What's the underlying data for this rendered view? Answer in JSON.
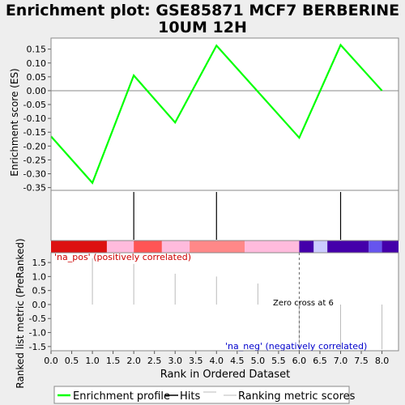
{
  "chart_data": {
    "title_line1": "Enrichment plot: GSE85871 MCF7 BERBERINE",
    "title_line2": "10UM 12H",
    "type": "line",
    "es_panel": {
      "ylabel": "Enrichment score (ES)",
      "ylim": [
        -0.36,
        0.19
      ],
      "yticks": [
        -0.35,
        -0.3,
        -0.25,
        -0.2,
        -0.15,
        -0.1,
        -0.05,
        0.0,
        0.05,
        0.1,
        0.15
      ],
      "ytick_labels": [
        "-0.35",
        "-0.30",
        "-0.25",
        "-0.20",
        "-0.15",
        "-0.10",
        "-0.05",
        "0.00",
        "0.05",
        "0.10",
        "0.15"
      ],
      "color": "#00ff00",
      "points": [
        {
          "x": 0,
          "y": -0.165
        },
        {
          "x": 1,
          "y": -0.333
        },
        {
          "x": 2,
          "y": 0.055
        },
        {
          "x": 3,
          "y": -0.115
        },
        {
          "x": 4,
          "y": 0.163
        },
        {
          "x": 6,
          "y": -0.17
        },
        {
          "x": 7,
          "y": 0.165
        },
        {
          "x": 8,
          "y": 0.0
        }
      ]
    },
    "hits": [
      2,
      4,
      7
    ],
    "color_bar": [
      {
        "from": 0.0,
        "to": 1.35,
        "color": "#dd1111"
      },
      {
        "from": 1.35,
        "to": 2.0,
        "color": "#ffbbdd"
      },
      {
        "from": 2.0,
        "to": 2.68,
        "color": "#ff5555"
      },
      {
        "from": 2.68,
        "to": 3.35,
        "color": "#ffbbdd"
      },
      {
        "from": 3.35,
        "to": 4.68,
        "color": "#ff8888"
      },
      {
        "from": 4.68,
        "to": 6.0,
        "color": "#ffbbdd"
      },
      {
        "from": 6.0,
        "to": 6.35,
        "color": "#4400aa"
      },
      {
        "from": 6.35,
        "to": 6.68,
        "color": "#ccccff"
      },
      {
        "from": 6.68,
        "to": 7.68,
        "color": "#4400aa"
      },
      {
        "from": 7.68,
        "to": 8.0,
        "color": "#6655ee"
      },
      {
        "from": 8.0,
        "to": 8.4,
        "color": "#4400aa"
      }
    ],
    "metric_panel": {
      "ylabel": "Ranked list metric (PreRanked)",
      "ylim": [
        -1.65,
        1.85
      ],
      "yticks": [
        -1.5,
        -1.0,
        -0.5,
        0.0,
        0.5,
        1.0,
        1.5
      ],
      "ytick_labels": [
        "-1.5",
        "-1.0",
        "-0.5",
        "0.0",
        "0.5",
        "1.0",
        "1.5"
      ],
      "bars": [
        {
          "x": 1,
          "y": 1.65
        },
        {
          "x": 2,
          "y": 1.45
        },
        {
          "x": 3,
          "y": 1.1
        },
        {
          "x": 4,
          "y": 1.0
        },
        {
          "x": 5,
          "y": 0.75
        },
        {
          "x": 6,
          "y": -1.6
        },
        {
          "x": 7,
          "y": -1.6
        },
        {
          "x": 8,
          "y": -1.6
        }
      ],
      "zero_cross_x": 6,
      "zero_cross_label": "Zero cross at 6",
      "pos_label": "'na_pos' (positively correlated)",
      "neg_label": "'na_neg' (negatively correlated)",
      "pos_color": "#cc0000",
      "neg_color": "#0000cc"
    },
    "x_axis": {
      "label": "Rank in Ordered Dataset",
      "xlim": [
        0,
        8.4
      ],
      "ticks": [
        0,
        0.5,
        1,
        1.5,
        2,
        2.5,
        3,
        3.5,
        4,
        4.5,
        5,
        5.5,
        6,
        6.5,
        7,
        7.5,
        8
      ],
      "tick_labels": [
        "0.0",
        "0.5",
        "1.0",
        "1.5",
        "2.0",
        "2.5",
        "3.0",
        "3.5",
        "4.0",
        "4.5",
        "5.0",
        "5.5",
        "6.0",
        "6.5",
        "7.0",
        "7.5",
        "8.0"
      ]
    },
    "legend": {
      "position": "bottom",
      "items": [
        {
          "label": "Enrichment profile",
          "color": "#00ff00"
        },
        {
          "label": "Hits",
          "color": "#000000"
        },
        {
          "label": "Ranking metric scores",
          "color": "#bbbbbb"
        }
      ]
    }
  }
}
